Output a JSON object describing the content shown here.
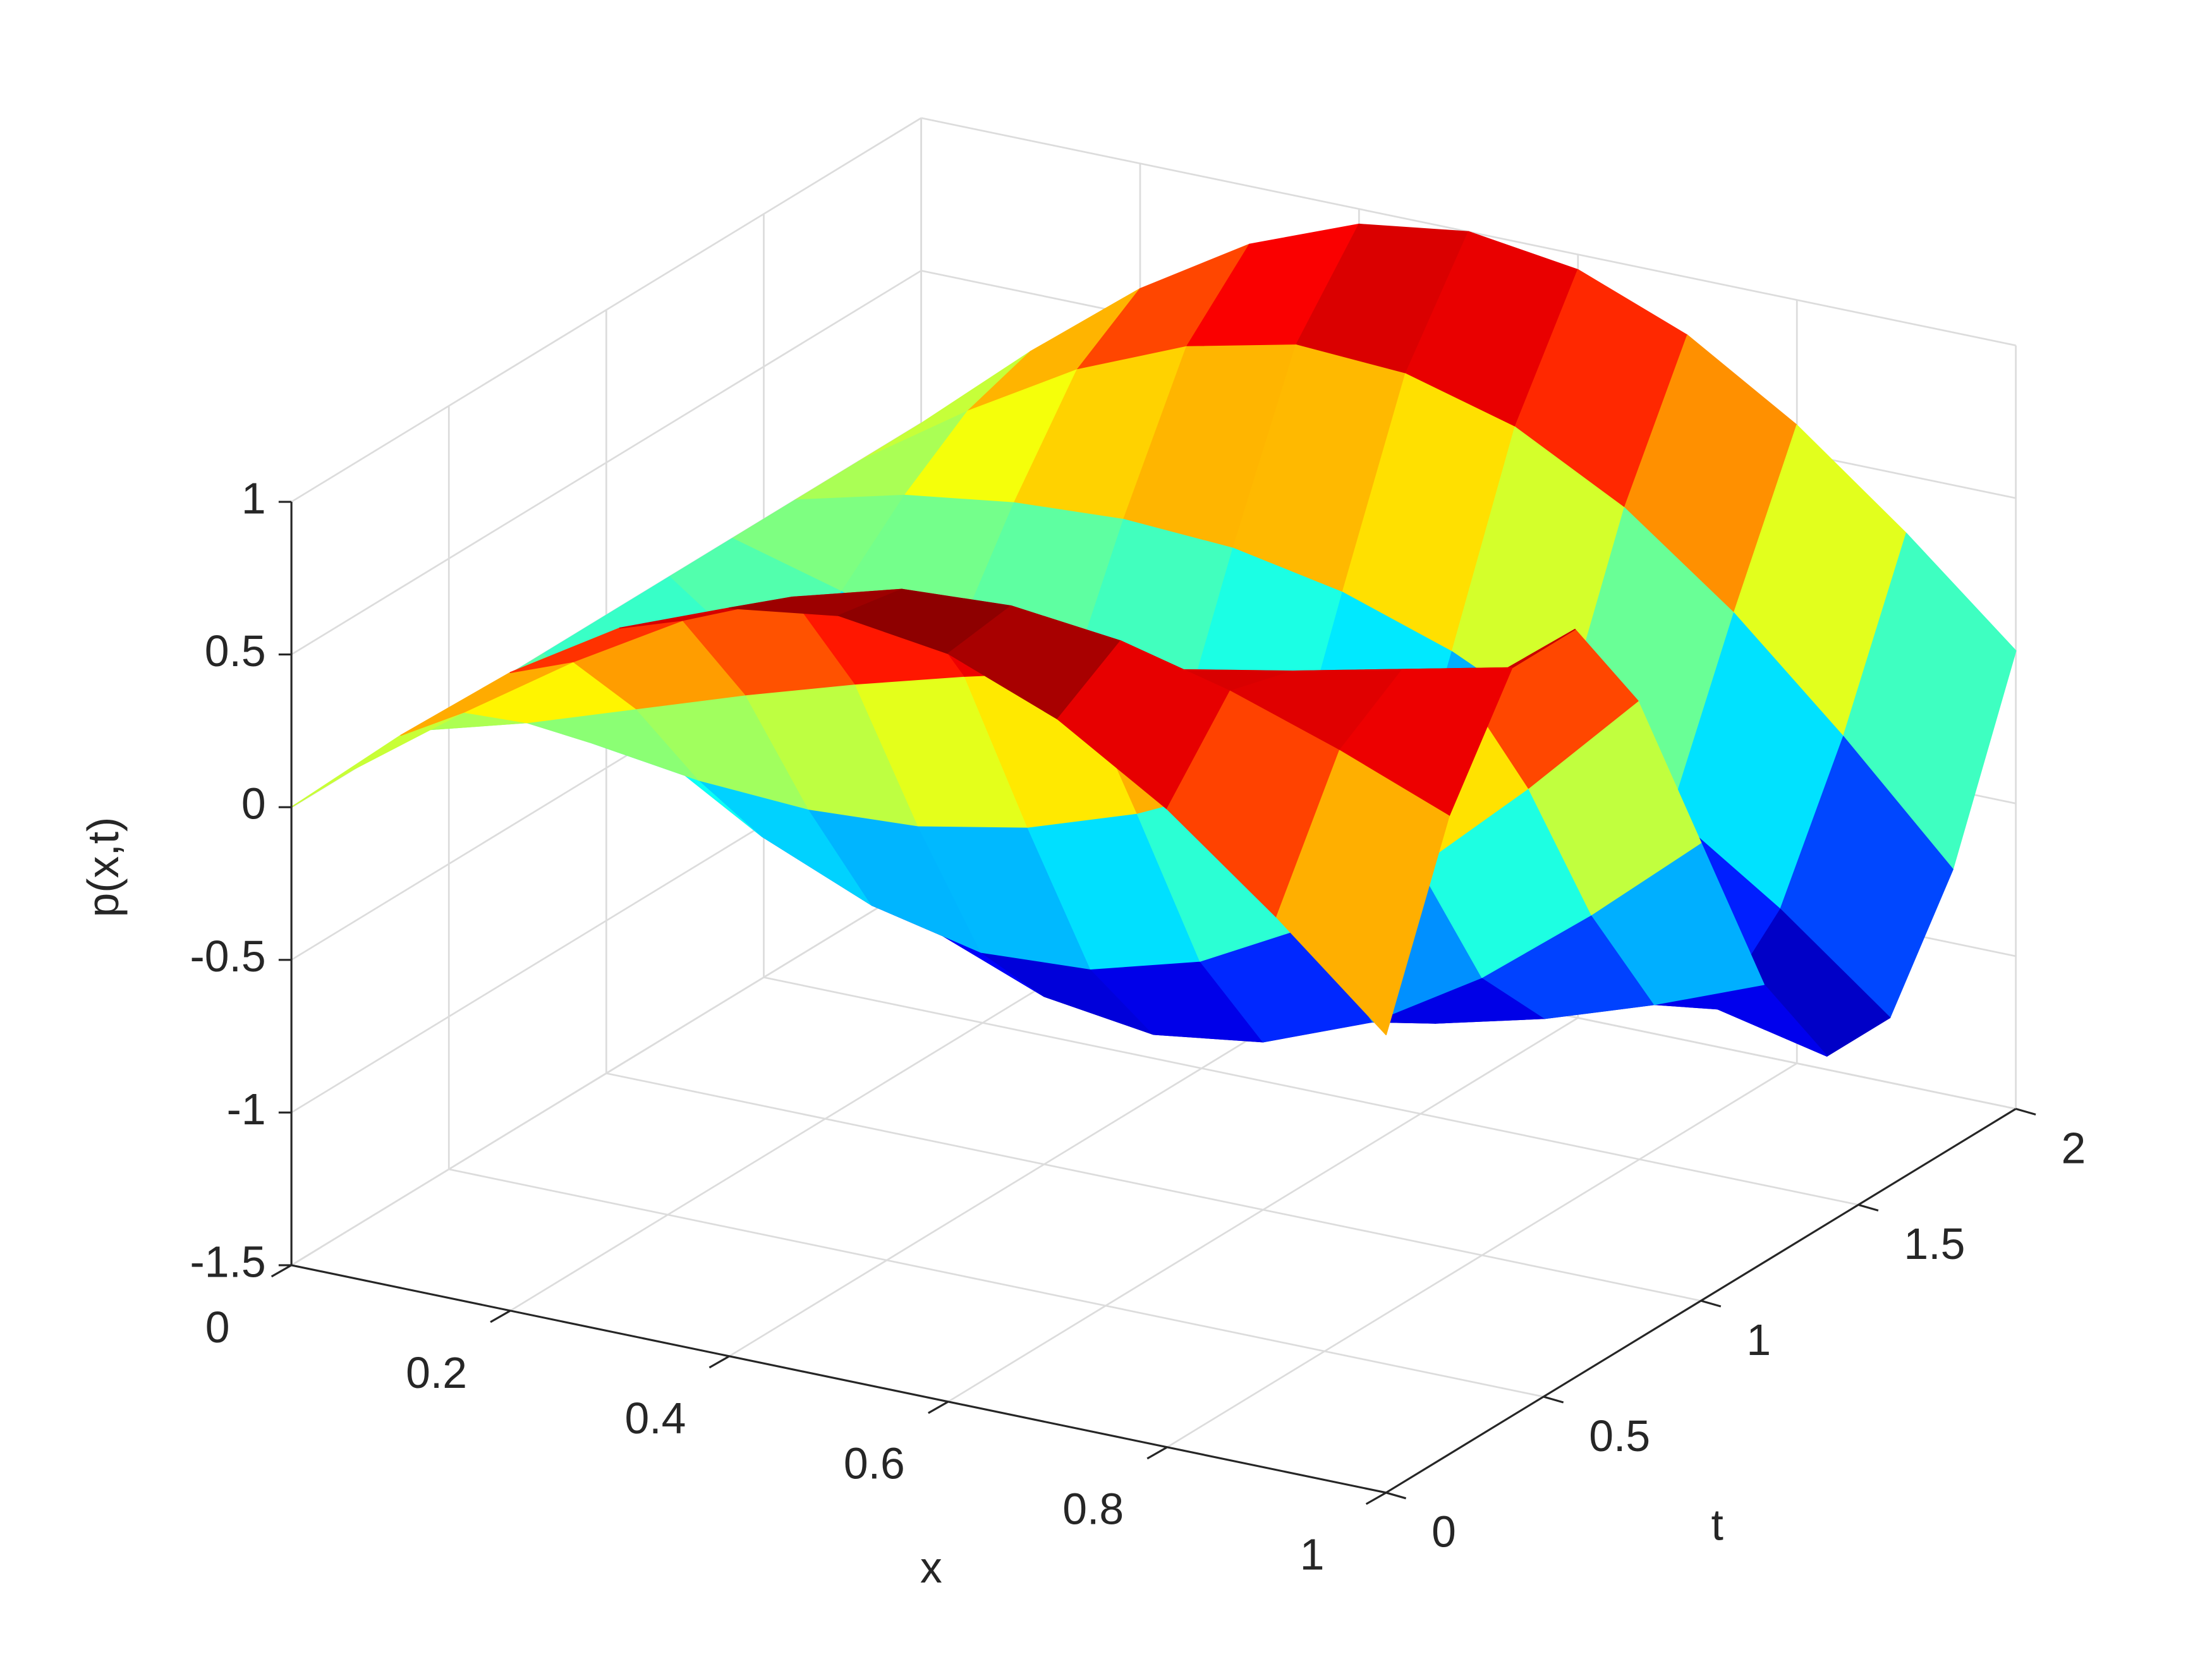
{
  "chart_data": {
    "type": "surface",
    "xlabel": "x",
    "ylabel": "t",
    "zlabel": "p(x,t)",
    "x": [
      0,
      0.1,
      0.2,
      0.3,
      0.4,
      0.5,
      0.6,
      0.7,
      0.8,
      0.9,
      1
    ],
    "t": [
      0,
      0.2,
      0.4,
      0.6,
      0.8,
      1,
      1.2,
      1.4,
      1.6,
      1.8,
      2
    ],
    "z": [
      [
        0,
        0.31,
        0.59,
        0.81,
        0.95,
        1,
        0.95,
        0.81,
        0.59,
        0.31,
        0
      ],
      [
        0,
        0.26,
        0.5,
        0.71,
        0.86,
        0.96,
        0.98,
        0.94,
        0.85,
        0.73,
        0.59
      ],
      [
        0,
        0.1,
        0.22,
        0.34,
        0.45,
        0.55,
        0.64,
        0.72,
        0.79,
        0.87,
        0.95
      ],
      [
        0,
        -0.09,
        -0.14,
        -0.16,
        -0.14,
        -0.07,
        0.05,
        0.22,
        0.43,
        0.67,
        0.95
      ],
      [
        0,
        -0.24,
        -0.45,
        -0.6,
        -0.68,
        -0.66,
        -0.56,
        -0.37,
        -0.1,
        0.23,
        0.59
      ],
      [
        0,
        -0.31,
        -0.59,
        -0.81,
        -0.95,
        -1,
        -0.95,
        -0.81,
        -0.59,
        -0.31,
        0
      ],
      [
        0,
        -0.26,
        -0.5,
        -0.71,
        -0.86,
        -0.96,
        -0.98,
        -0.94,
        -0.85,
        -0.73,
        -0.59
      ],
      [
        0,
        -0.1,
        -0.22,
        -0.34,
        -0.45,
        -0.55,
        -0.64,
        -0.72,
        -0.79,
        -0.87,
        -0.95
      ],
      [
        0,
        0.09,
        0.14,
        0.16,
        0.14,
        0.07,
        -0.05,
        -0.22,
        -0.43,
        -0.67,
        -0.95
      ],
      [
        0,
        0.24,
        0.45,
        0.6,
        0.68,
        0.66,
        0.56,
        0.37,
        0.1,
        -0.23,
        -0.59
      ],
      [
        0,
        0.31,
        0.59,
        0.81,
        0.95,
        1,
        0.95,
        0.81,
        0.59,
        0.31,
        0
      ]
    ],
    "xlim": [
      0,
      1
    ],
    "tlim": [
      0,
      2
    ],
    "zlim": [
      -1.5,
      1
    ],
    "xticks": [
      0,
      0.2,
      0.4,
      0.6,
      0.8,
      1
    ],
    "tticks": [
      0,
      0.5,
      1,
      1.5,
      2
    ],
    "zticks": [
      -1.5,
      -1,
      -0.5,
      0,
      0.5,
      1
    ],
    "colormap": "jet",
    "grid": true
  }
}
